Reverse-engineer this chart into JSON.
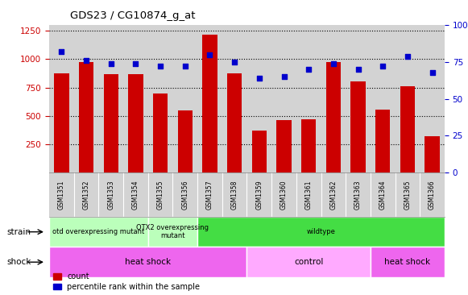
{
  "title": "GDS23 / CG10874_g_at",
  "samples": [
    "GSM1351",
    "GSM1352",
    "GSM1353",
    "GSM1354",
    "GSM1355",
    "GSM1356",
    "GSM1357",
    "GSM1358",
    "GSM1359",
    "GSM1360",
    "GSM1361",
    "GSM1362",
    "GSM1363",
    "GSM1364",
    "GSM1365",
    "GSM1366"
  ],
  "counts": [
    875,
    975,
    870,
    870,
    700,
    545,
    1215,
    875,
    370,
    460,
    470,
    975,
    800,
    555,
    760,
    320
  ],
  "percentiles": [
    82,
    76,
    74,
    74,
    72,
    72,
    80,
    75,
    64,
    65,
    70,
    74,
    70,
    72,
    79,
    68
  ],
  "bar_color": "#CC0000",
  "dot_color": "#0000CC",
  "bg_color": "#D3D3D3",
  "plot_bg": "#FFFFFF",
  "ylim_left": [
    0,
    1300
  ],
  "ylim_right": [
    0,
    100
  ],
  "yticks_left": [
    250,
    500,
    750,
    1000,
    1250
  ],
  "yticks_right": [
    0,
    25,
    50,
    75,
    100
  ],
  "strain_spans": [
    {
      "label": "otd overexpressing mutant",
      "start": 0,
      "end": 3,
      "color": "#BBFFBB"
    },
    {
      "label": "OTX2 overexpressing\nmutant",
      "start": 4,
      "end": 5,
      "color": "#BBFFBB"
    },
    {
      "label": "wildtype",
      "start": 6,
      "end": 15,
      "color": "#44DD44"
    }
  ],
  "shock_spans": [
    {
      "label": "heat shock",
      "start": 0,
      "end": 7,
      "color": "#EE66EE"
    },
    {
      "label": "control",
      "start": 8,
      "end": 12,
      "color": "#FFAAFF"
    },
    {
      "label": "heat shock",
      "start": 13,
      "end": 15,
      "color": "#EE66EE"
    }
  ]
}
